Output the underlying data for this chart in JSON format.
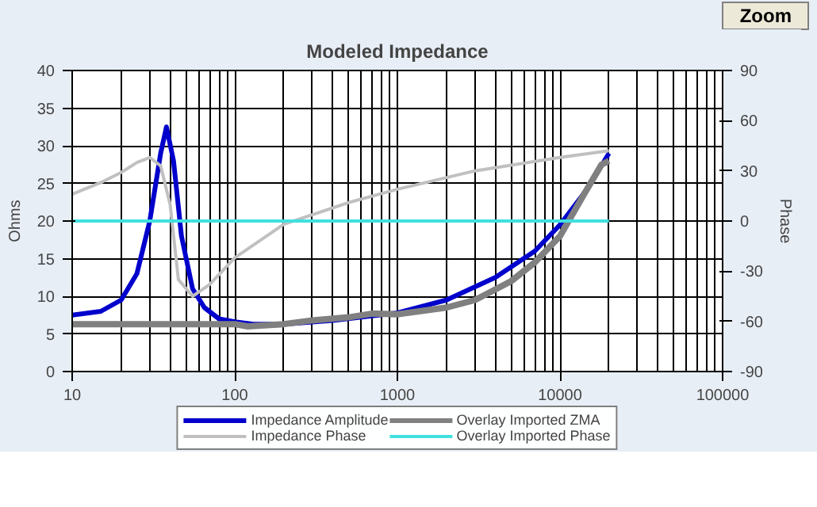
{
  "chart_data": {
    "type": "line",
    "title": "Modeled Impedance",
    "ylabel": "Ohms",
    "y2label": "Phase",
    "log": "x",
    "xlim": [
      10,
      100000
    ],
    "xticks": [
      10,
      100,
      1000,
      10000,
      100000
    ],
    "ylim": [
      0,
      40
    ],
    "yticks": [
      0,
      5,
      10,
      15,
      20,
      25,
      30,
      35,
      40
    ],
    "y2lim": [
      -90,
      90
    ],
    "y2ticks": [
      -90,
      -60,
      -30,
      0,
      30,
      60,
      90
    ],
    "grid": true,
    "legend": "bottom",
    "marker": "none",
    "line_style": "solid",
    "annotations": [
      "Zoom"
    ],
    "series": [
      {
        "name": "Impedance Amplitude",
        "color": "#0000cc",
        "x": [
          10,
          15,
          20,
          25,
          30,
          35,
          38,
          42,
          47,
          55,
          65,
          80,
          100,
          130,
          200,
          400,
          1000,
          2000,
          4000,
          7000,
          10000,
          15000,
          20000
        ],
        "values": [
          7.5,
          8,
          9.5,
          13,
          20,
          29,
          32.5,
          28,
          18,
          11,
          8.5,
          7,
          6.6,
          6.3,
          6.3,
          6.8,
          7.8,
          9.5,
          12.5,
          16,
          19.5,
          24.5,
          29
        ]
      },
      {
        "name": "Overlay Imported ZMA",
        "color": "#808080",
        "x": [
          10,
          100,
          120,
          200,
          300,
          500,
          700,
          1000,
          2000,
          3000,
          5000,
          7000,
          10000,
          14000,
          18000,
          20000
        ],
        "values": [
          6.3,
          6.3,
          6.0,
          6.3,
          6.8,
          7.2,
          7.7,
          7.6,
          8.5,
          9.5,
          12,
          14.5,
          18,
          23.5,
          27.5,
          28
        ]
      },
      {
        "name": "Impedance Phase",
        "color": "#c0c0c0",
        "axis": "y2",
        "x": [
          10,
          15,
          20,
          25,
          30,
          35,
          40,
          45,
          55,
          70,
          100,
          200,
          500,
          1000,
          3000,
          10000,
          20000
        ],
        "values": [
          16,
          23,
          29,
          35,
          38,
          33,
          10,
          -35,
          -45,
          -38,
          -22,
          -2,
          11,
          19,
          30,
          38,
          42
        ]
      },
      {
        "name": "Overlay Imported Phase",
        "color": "#40e0e0",
        "axis": "y2",
        "x": [
          10,
          20000
        ],
        "values": [
          0,
          0
        ]
      }
    ]
  }
}
